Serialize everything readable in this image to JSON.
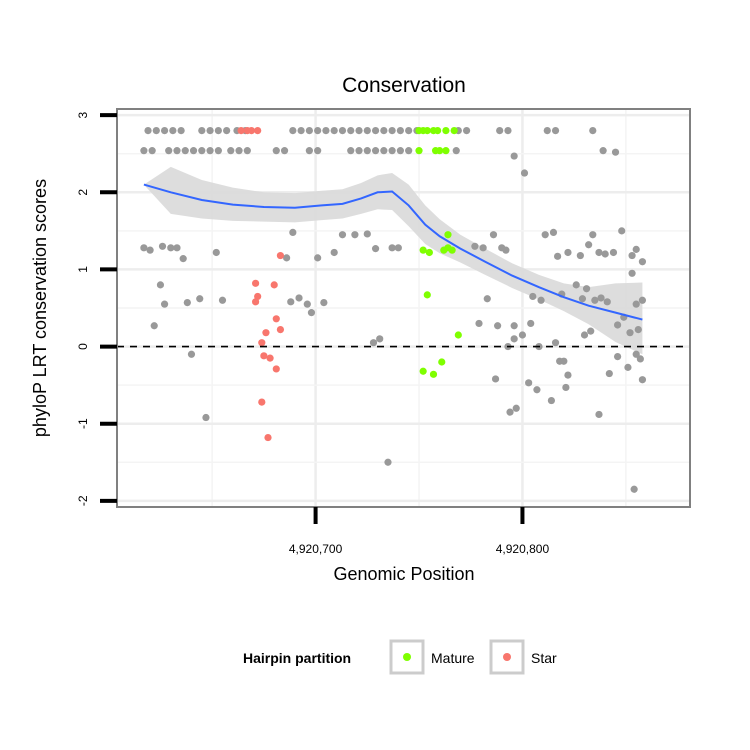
{
  "chart_data": {
    "type": "scatter",
    "title": "Conservation",
    "xlabel": "Genomic Position",
    "ylabel": "phyloP LRT conservation scores",
    "xlim": [
      4920604,
      4920881
    ],
    "ylim": [
      -2.08,
      3.08
    ],
    "x_ticks": [
      {
        "value": 4920700,
        "label": "4,920,700"
      },
      {
        "value": 4920800,
        "label": "4,920,800"
      }
    ],
    "y_ticks": [
      {
        "value": -2,
        "label": "-2"
      },
      {
        "value": -1,
        "label": "-1"
      },
      {
        "value": 0,
        "label": "0"
      },
      {
        "value": 1,
        "label": "1"
      },
      {
        "value": 2,
        "label": "2"
      },
      {
        "value": 3,
        "label": "3"
      }
    ],
    "reference_line": {
      "y": 0,
      "style": "dashed"
    },
    "grid": true,
    "legend": {
      "title": "Hairpin partition",
      "position": "bottom",
      "entries": [
        {
          "label": "Mature",
          "color": "#7fff00"
        },
        {
          "label": "Star",
          "color": "#f8766d"
        }
      ]
    },
    "colors": {
      "other": "#999999",
      "mature": "#7fff00",
      "star": "#f8766d",
      "smooth_line": "#3366ff",
      "ribbon": "#d9d9d9"
    },
    "series": [
      {
        "group": "other",
        "points": [
          [
            4920619,
            2.8
          ],
          [
            4920623,
            2.8
          ],
          [
            4920627,
            2.8
          ],
          [
            4920631,
            2.8
          ],
          [
            4920635,
            2.8
          ],
          [
            4920645,
            2.8
          ],
          [
            4920649,
            2.8
          ],
          [
            4920653,
            2.8
          ],
          [
            4920657,
            2.8
          ],
          [
            4920662,
            2.8
          ],
          [
            4920666,
            2.8
          ],
          [
            4920689,
            2.8
          ],
          [
            4920693,
            2.8
          ],
          [
            4920697,
            2.8
          ],
          [
            4920701,
            2.8
          ],
          [
            4920705,
            2.8
          ],
          [
            4920709,
            2.8
          ],
          [
            4920713,
            2.8
          ],
          [
            4920717,
            2.8
          ],
          [
            4920721,
            2.8
          ],
          [
            4920725,
            2.8
          ],
          [
            4920729,
            2.8
          ],
          [
            4920733,
            2.8
          ],
          [
            4920737,
            2.8
          ],
          [
            4920741,
            2.8
          ],
          [
            4920745,
            2.8
          ],
          [
            4920749,
            2.8
          ],
          [
            4920769,
            2.8
          ],
          [
            4920773,
            2.8
          ],
          [
            4920789,
            2.8
          ],
          [
            4920793,
            2.8
          ],
          [
            4920812,
            2.8
          ],
          [
            4920816,
            2.8
          ],
          [
            4920834,
            2.8
          ],
          [
            4920617,
            2.54
          ],
          [
            4920621,
            2.54
          ],
          [
            4920629,
            2.54
          ],
          [
            4920633,
            2.54
          ],
          [
            4920637,
            2.54
          ],
          [
            4920641,
            2.54
          ],
          [
            4920645,
            2.54
          ],
          [
            4920649,
            2.54
          ],
          [
            4920653,
            2.54
          ],
          [
            4920659,
            2.54
          ],
          [
            4920663,
            2.54
          ],
          [
            4920667,
            2.54
          ],
          [
            4920681,
            2.54
          ],
          [
            4920685,
            2.54
          ],
          [
            4920697,
            2.54
          ],
          [
            4920701,
            2.54
          ],
          [
            4920717,
            2.54
          ],
          [
            4920721,
            2.54
          ],
          [
            4920725,
            2.54
          ],
          [
            4920729,
            2.54
          ],
          [
            4920733,
            2.54
          ],
          [
            4920737,
            2.54
          ],
          [
            4920741,
            2.54
          ],
          [
            4920745,
            2.54
          ],
          [
            4920768,
            2.54
          ],
          [
            4920839,
            2.54
          ],
          [
            4920845,
            2.52
          ],
          [
            4920796,
            2.47
          ],
          [
            4920801,
            2.25
          ],
          [
            4920617,
            1.28
          ],
          [
            4920620,
            1.25
          ],
          [
            4920626,
            1.3
          ],
          [
            4920630,
            1.28
          ],
          [
            4920633,
            1.28
          ],
          [
            4920636,
            1.14
          ],
          [
            4920625,
            0.8
          ],
          [
            4920627,
            0.55
          ],
          [
            4920622,
            0.27
          ],
          [
            4920638,
            0.57
          ],
          [
            4920644,
            0.62
          ],
          [
            4920640,
            -0.1
          ],
          [
            4920647,
            -0.92
          ],
          [
            4920652,
            1.22
          ],
          [
            4920655,
            0.6
          ],
          [
            4920686,
            1.15
          ],
          [
            4920689,
            1.48
          ],
          [
            4920688,
            0.58
          ],
          [
            4920692,
            0.63
          ],
          [
            4920696,
            0.55
          ],
          [
            4920698,
            0.44
          ],
          [
            4920701,
            1.15
          ],
          [
            4920704,
            0.57
          ],
          [
            4920709,
            1.22
          ],
          [
            4920713,
            1.45
          ],
          [
            4920719,
            1.45
          ],
          [
            4920725,
            1.46
          ],
          [
            4920728,
            0.05
          ],
          [
            4920729,
            1.27
          ],
          [
            4920731,
            0.1
          ],
          [
            4920737,
            1.28
          ],
          [
            4920740,
            1.28
          ],
          [
            4920735,
            -1.5
          ],
          [
            4920777,
            1.3
          ],
          [
            4920781,
            1.28
          ],
          [
            4920786,
            1.45
          ],
          [
            4920790,
            1.28
          ],
          [
            4920792,
            1.25
          ],
          [
            4920783,
            0.62
          ],
          [
            4920779,
            0.3
          ],
          [
            4920788,
            0.27
          ],
          [
            4920796,
            0.27
          ],
          [
            4920793,
            0.0
          ],
          [
            4920796,
            0.1
          ],
          [
            4920804,
            0.3
          ],
          [
            4920800,
            0.15
          ],
          [
            4920805,
            0.65
          ],
          [
            4920809,
            0.6
          ],
          [
            4920808,
            0.0
          ],
          [
            4920787,
            -0.42
          ],
          [
            4920794,
            -0.85
          ],
          [
            4920797,
            -0.8
          ],
          [
            4920803,
            -0.47
          ],
          [
            4920807,
            -0.56
          ],
          [
            4920811,
            1.45
          ],
          [
            4920815,
            1.48
          ],
          [
            4920817,
            1.17
          ],
          [
            4920819,
            0.68
          ],
          [
            4920816,
            0.05
          ],
          [
            4920818,
            -0.19
          ],
          [
            4920820,
            -0.19
          ],
          [
            4920821,
            -0.53
          ],
          [
            4920822,
            -0.37
          ],
          [
            4920814,
            -0.7
          ],
          [
            4920822,
            1.22
          ],
          [
            4920828,
            1.18
          ],
          [
            4920832,
            1.32
          ],
          [
            4920834,
            1.45
          ],
          [
            4920837,
            1.22
          ],
          [
            4920840,
            1.2
          ],
          [
            4920844,
            1.22
          ],
          [
            4920848,
            1.5
          ],
          [
            4920826,
            0.8
          ],
          [
            4920829,
            0.62
          ],
          [
            4920831,
            0.75
          ],
          [
            4920835,
            0.6
          ],
          [
            4920838,
            0.63
          ],
          [
            4920841,
            0.58
          ],
          [
            4920833,
            0.2
          ],
          [
            4920830,
            0.15
          ],
          [
            4920846,
            0.28
          ],
          [
            4920849,
            0.38
          ],
          [
            4920852,
            0.18
          ],
          [
            4920837,
            -0.88
          ],
          [
            4920842,
            -0.35
          ],
          [
            4920846,
            -0.13
          ],
          [
            4920851,
            -0.27
          ],
          [
            4920853,
            1.18
          ],
          [
            4920855,
            1.26
          ],
          [
            4920858,
            1.1
          ],
          [
            4920853,
            0.95
          ],
          [
            4920855,
            0.55
          ],
          [
            4920856,
            0.22
          ],
          [
            4920858,
            0.6
          ],
          [
            4920855,
            -0.1
          ],
          [
            4920857,
            -0.16
          ],
          [
            4920858,
            -0.43
          ],
          [
            4920854,
            -1.85
          ]
        ]
      },
      {
        "group": "mature",
        "points": [
          [
            4920750,
            2.8
          ],
          [
            4920752,
            2.8
          ],
          [
            4920754,
            2.8
          ],
          [
            4920757,
            2.8
          ],
          [
            4920759,
            2.8
          ],
          [
            4920763,
            2.8
          ],
          [
            4920767,
            2.8
          ],
          [
            4920750,
            2.54
          ],
          [
            4920758,
            2.54
          ],
          [
            4920760,
            2.54
          ],
          [
            4920763,
            2.54
          ],
          [
            4920764,
            1.45
          ],
          [
            4920764,
            1.28
          ],
          [
            4920762,
            1.25
          ],
          [
            4920766,
            1.25
          ],
          [
            4920752,
            1.25
          ],
          [
            4920755,
            1.22
          ],
          [
            4920754,
            0.67
          ],
          [
            4920769,
            0.15
          ],
          [
            4920761,
            -0.2
          ],
          [
            4920752,
            -0.32
          ],
          [
            4920757,
            -0.36
          ]
        ]
      },
      {
        "group": "star",
        "points": [
          [
            4920664,
            2.8
          ],
          [
            4920667,
            2.8
          ],
          [
            4920669,
            2.8
          ],
          [
            4920672,
            2.8
          ],
          [
            4920683,
            1.18
          ],
          [
            4920671,
            0.82
          ],
          [
            4920672,
            0.65
          ],
          [
            4920671,
            0.58
          ],
          [
            4920680,
            0.8
          ],
          [
            4920681,
            0.36
          ],
          [
            4920683,
            0.22
          ],
          [
            4920676,
            0.18
          ],
          [
            4920674,
            0.05
          ],
          [
            4920675,
            -0.12
          ],
          [
            4920678,
            -0.15
          ],
          [
            4920681,
            -0.29
          ],
          [
            4920674,
            -0.72
          ],
          [
            4920677,
            -1.18
          ]
        ]
      }
    ],
    "smooth": {
      "method": "loess",
      "line": [
        [
          4920617,
          2.1
        ],
        [
          4920630,
          2.0
        ],
        [
          4920645,
          1.9
        ],
        [
          4920660,
          1.84
        ],
        [
          4920675,
          1.81
        ],
        [
          4920690,
          1.8
        ],
        [
          4920703,
          1.83
        ],
        [
          4920713,
          1.85
        ],
        [
          4920722,
          1.92
        ],
        [
          4920730,
          2.0
        ],
        [
          4920737,
          2.01
        ],
        [
          4920745,
          1.83
        ],
        [
          4920753,
          1.58
        ],
        [
          4920760,
          1.43
        ],
        [
          4920770,
          1.27
        ],
        [
          4920782,
          1.1
        ],
        [
          4920795,
          0.92
        ],
        [
          4920808,
          0.77
        ],
        [
          4920820,
          0.64
        ],
        [
          4920832,
          0.53
        ],
        [
          4920845,
          0.44
        ],
        [
          4920858,
          0.35
        ]
      ],
      "upper": [
        [
          4920617,
          2.1
        ],
        [
          4920630,
          2.33
        ],
        [
          4920645,
          2.16
        ],
        [
          4920660,
          2.06
        ],
        [
          4920675,
          2.0
        ],
        [
          4920690,
          1.99
        ],
        [
          4920703,
          2.02
        ],
        [
          4920713,
          2.04
        ],
        [
          4920722,
          2.12
        ],
        [
          4920730,
          2.22
        ],
        [
          4920737,
          2.25
        ],
        [
          4920745,
          2.1
        ],
        [
          4920753,
          1.83
        ],
        [
          4920760,
          1.65
        ],
        [
          4920770,
          1.45
        ],
        [
          4920782,
          1.27
        ],
        [
          4920795,
          1.08
        ],
        [
          4920808,
          0.93
        ],
        [
          4920820,
          0.82
        ],
        [
          4920832,
          0.77
        ],
        [
          4920845,
          0.82
        ],
        [
          4920858,
          0.83
        ]
      ],
      "lower": [
        [
          4920617,
          2.1
        ],
        [
          4920630,
          1.72
        ],
        [
          4920645,
          1.66
        ],
        [
          4920660,
          1.63
        ],
        [
          4920675,
          1.62
        ],
        [
          4920690,
          1.61
        ],
        [
          4920703,
          1.64
        ],
        [
          4920713,
          1.66
        ],
        [
          4920722,
          1.72
        ],
        [
          4920730,
          1.78
        ],
        [
          4920737,
          1.77
        ],
        [
          4920745,
          1.56
        ],
        [
          4920753,
          1.33
        ],
        [
          4920760,
          1.21
        ],
        [
          4920770,
          1.09
        ],
        [
          4920782,
          0.93
        ],
        [
          4920795,
          0.76
        ],
        [
          4920808,
          0.61
        ],
        [
          4920820,
          0.46
        ],
        [
          4920832,
          0.29
        ],
        [
          4920845,
          0.06
        ],
        [
          4920858,
          -0.1
        ]
      ]
    }
  }
}
